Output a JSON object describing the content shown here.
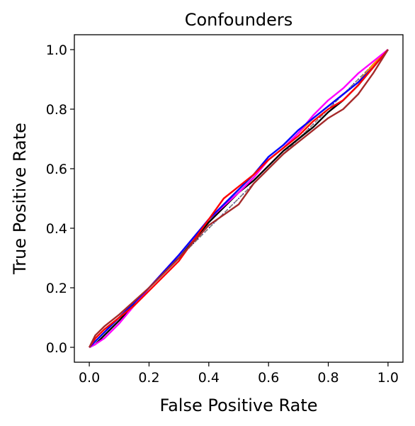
{
  "chart_data": {
    "type": "line",
    "title": "Confounders",
    "xlabel": "False Positive Rate",
    "ylabel": "True Positive Rate",
    "xlim": [
      -0.05,
      1.05
    ],
    "ylim": [
      -0.05,
      1.05
    ],
    "xticks": [
      "0.0",
      "0.2",
      "0.4",
      "0.6",
      "0.8",
      "1.0"
    ],
    "yticks": [
      "0.0",
      "0.2",
      "0.4",
      "0.6",
      "0.8",
      "1.0"
    ],
    "grid": false,
    "legend": "none",
    "reference_lines": [
      {
        "style": "dotted",
        "color": "#000080",
        "x": [
          0,
          1
        ],
        "y": [
          0,
          1
        ]
      },
      {
        "style": "dashed",
        "color": "#808080",
        "x": [
          0,
          1
        ],
        "y": [
          0,
          1
        ]
      }
    ],
    "series": [
      {
        "color": "#000000",
        "x": [
          0,
          0.02,
          0.05,
          0.1,
          0.2,
          0.3,
          0.4,
          0.5,
          0.55,
          0.6,
          0.65,
          0.7,
          0.75,
          0.8,
          0.85,
          0.9,
          0.95,
          1.0
        ],
        "y": [
          0,
          0.01,
          0.04,
          0.09,
          0.2,
          0.3,
          0.42,
          0.52,
          0.56,
          0.61,
          0.66,
          0.7,
          0.74,
          0.79,
          0.83,
          0.88,
          0.94,
          1.0
        ]
      },
      {
        "color": "#ff8c00",
        "x": [
          0,
          0.02,
          0.05,
          0.1,
          0.2,
          0.3,
          0.4,
          0.5,
          0.55,
          0.6,
          0.65,
          0.7,
          0.75,
          0.8,
          0.85,
          0.9,
          0.95,
          1.0
        ],
        "y": [
          0,
          0.02,
          0.05,
          0.1,
          0.2,
          0.31,
          0.43,
          0.52,
          0.57,
          0.63,
          0.67,
          0.72,
          0.77,
          0.81,
          0.85,
          0.89,
          0.95,
          1.0
        ]
      },
      {
        "color": "#ff00ff",
        "x": [
          0,
          0.02,
          0.05,
          0.1,
          0.2,
          0.3,
          0.4,
          0.5,
          0.55,
          0.6,
          0.65,
          0.7,
          0.75,
          0.8,
          0.85,
          0.9,
          0.95,
          1.0
        ],
        "y": [
          0,
          0.01,
          0.03,
          0.08,
          0.2,
          0.31,
          0.43,
          0.52,
          0.57,
          0.63,
          0.67,
          0.72,
          0.78,
          0.83,
          0.87,
          0.92,
          0.96,
          1.0
        ]
      },
      {
        "color": "#0000ff",
        "x": [
          0,
          0.02,
          0.05,
          0.1,
          0.2,
          0.3,
          0.4,
          0.45,
          0.5,
          0.55,
          0.6,
          0.65,
          0.7,
          0.75,
          0.8,
          0.85,
          0.9,
          0.95,
          1.0
        ],
        "y": [
          0,
          0.02,
          0.05,
          0.1,
          0.2,
          0.31,
          0.43,
          0.48,
          0.53,
          0.58,
          0.64,
          0.68,
          0.73,
          0.77,
          0.81,
          0.85,
          0.89,
          0.94,
          1.0
        ]
      },
      {
        "color": "#ff0000",
        "x": [
          0,
          0.02,
          0.05,
          0.1,
          0.15,
          0.2,
          0.3,
          0.35,
          0.4,
          0.45,
          0.5,
          0.55,
          0.6,
          0.65,
          0.7,
          0.75,
          0.8,
          0.85,
          0.9,
          0.95,
          1.0
        ],
        "y": [
          0,
          0.03,
          0.06,
          0.1,
          0.14,
          0.19,
          0.29,
          0.36,
          0.43,
          0.5,
          0.54,
          0.58,
          0.63,
          0.67,
          0.71,
          0.76,
          0.8,
          0.83,
          0.88,
          0.94,
          1.0
        ]
      },
      {
        "color": "#a52a2a",
        "x": [
          0,
          0.02,
          0.05,
          0.1,
          0.2,
          0.3,
          0.4,
          0.5,
          0.55,
          0.6,
          0.65,
          0.7,
          0.75,
          0.8,
          0.85,
          0.9,
          0.95,
          1.0
        ],
        "y": [
          0,
          0.04,
          0.07,
          0.11,
          0.2,
          0.3,
          0.41,
          0.48,
          0.55,
          0.6,
          0.65,
          0.69,
          0.73,
          0.77,
          0.8,
          0.85,
          0.92,
          1.0
        ]
      }
    ]
  }
}
